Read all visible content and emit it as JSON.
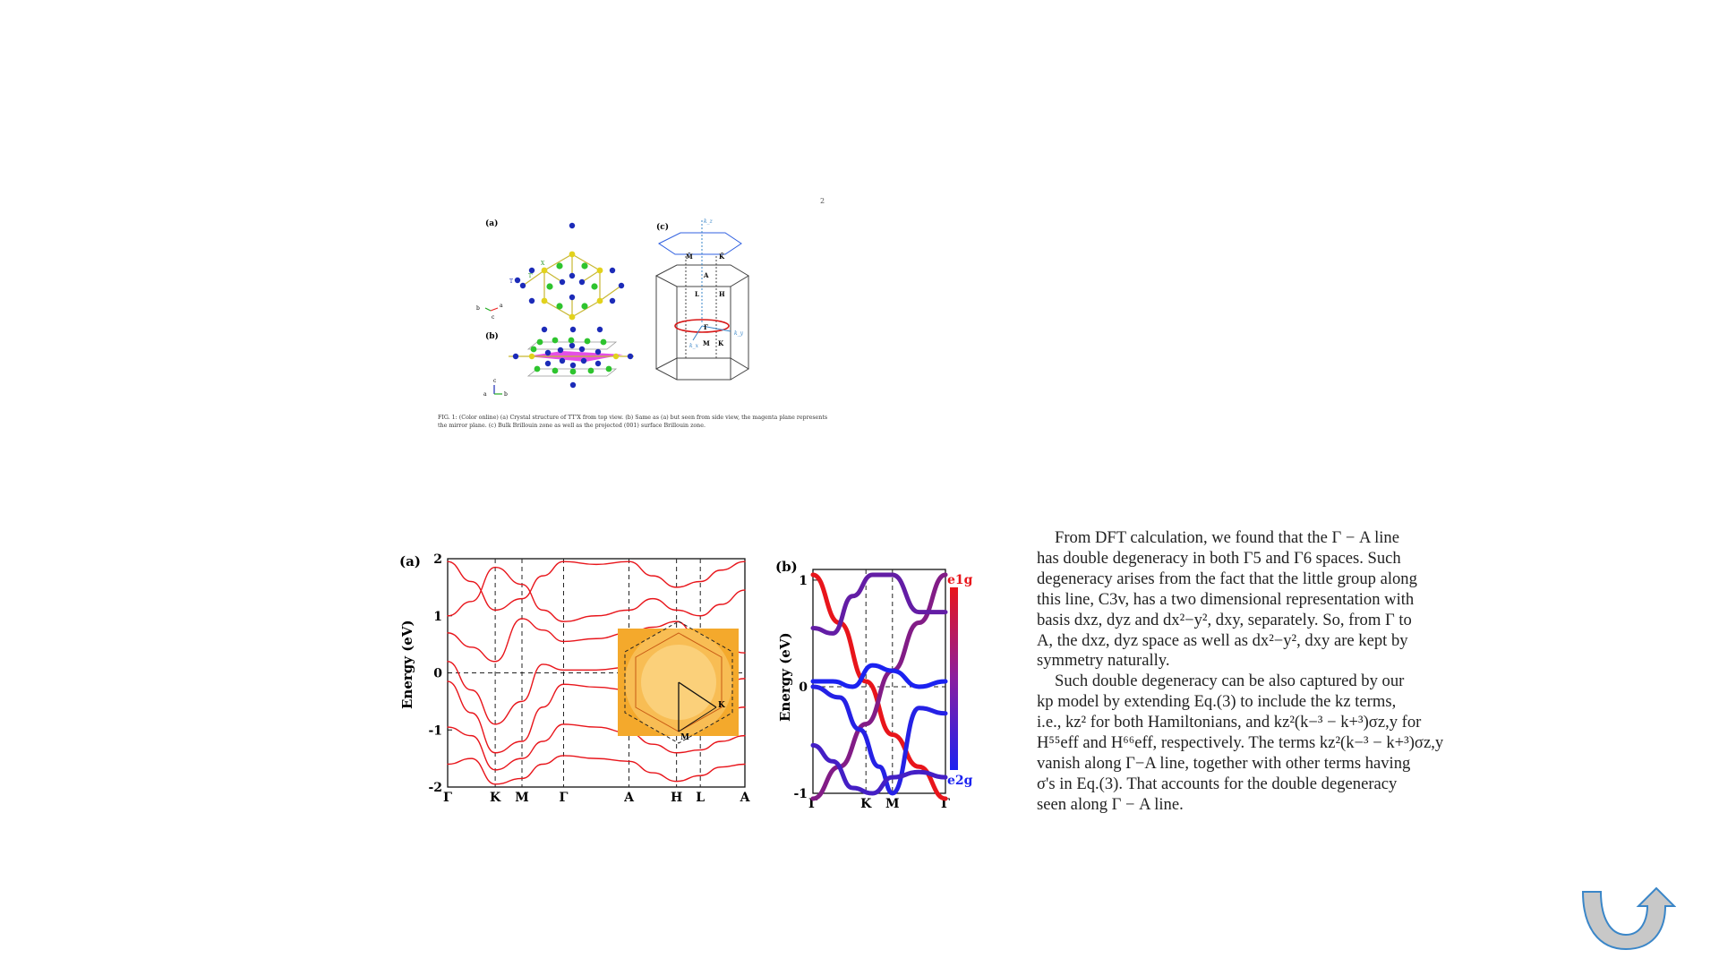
{
  "page": {
    "page_number": "2"
  },
  "figure1": {
    "panel_a": "(a)",
    "panel_b": "(b)",
    "panel_c": "(c)",
    "atom_labels": {
      "T": "T",
      "T_prime": "T'",
      "X": "X"
    },
    "axes_a": {
      "b": "b",
      "a": "a",
      "c": "c"
    },
    "axes_b": {
      "a": "a",
      "b": "b",
      "c": "c"
    },
    "bz_labels": {
      "kz": "k_z",
      "ky": "k_y",
      "kx": "k_x",
      "M_top": "M̄",
      "K_top": "K̄",
      "A": "A",
      "L": "L",
      "H": "H",
      "Gamma": "Γ",
      "M": "M",
      "K": "K"
    },
    "caption": "FIG. 1: (Color online) (a) Crystal structure of TT'X from top view. (b) Same as (a) but seen from side view, the magenta plane represents the mirror plane. (c) Bulk Brillouin zone as well as the projected (001) surface Brillouin zone."
  },
  "figure2": {
    "panel_a": "(a)",
    "panel_b": "(b)",
    "colors": {
      "band_red": "#e8151b",
      "band_blue": "#1b22f0",
      "inset_orange": "#f4a92c"
    },
    "chart_data": [
      {
        "type": "line",
        "title": "",
        "ylabel": "Energy (eV)",
        "ylim": [
          -2,
          2
        ],
        "yticks": [
          "2",
          "1",
          "0",
          "-1",
          "-2"
        ],
        "xticks": [
          "Γ",
          "K",
          "M",
          "Γ",
          "A",
          "H",
          "L",
          "A"
        ],
        "xpos": [
          0,
          0.16,
          0.25,
          0.39,
          0.61,
          0.77,
          0.85,
          1.0
        ],
        "fermi_level": 0,
        "series_color": "#e8151b",
        "series": [
          {
            "values_x": [
              0,
              0.08,
              0.16,
              0.25,
              0.32,
              0.39,
              0.5,
              0.61,
              0.69,
              0.77,
              0.85,
              0.92,
              1.0
            ],
            "values": [
              1.95,
              1.6,
              1.1,
              1.3,
              1.7,
              1.95,
              1.9,
              1.95,
              1.7,
              1.5,
              1.6,
              1.8,
              1.95
            ]
          },
          {
            "values_x": [
              0,
              0.08,
              0.16,
              0.25,
              0.32,
              0.39,
              0.5,
              0.61,
              0.69,
              0.77,
              0.85,
              0.92,
              1.0
            ],
            "values": [
              1.0,
              1.25,
              1.85,
              1.55,
              1.1,
              0.9,
              1.0,
              1.1,
              1.3,
              1.1,
              1.0,
              1.2,
              1.45
            ]
          },
          {
            "values_x": [
              0,
              0.08,
              0.16,
              0.25,
              0.32,
              0.39,
              0.5,
              0.61,
              0.69,
              0.77,
              0.85,
              0.92,
              1.0
            ],
            "values": [
              0.7,
              0.45,
              0.2,
              0.95,
              0.75,
              0.55,
              0.6,
              0.7,
              0.8,
              0.9,
              0.55,
              0.45,
              0.35
            ]
          },
          {
            "values_x": [
              0,
              0.08,
              0.16,
              0.25,
              0.32,
              0.39,
              0.5,
              0.61,
              0.69,
              0.77,
              0.85,
              0.92,
              1.0
            ],
            "values": [
              0.2,
              -0.3,
              -0.9,
              -0.5,
              0.15,
              0.05,
              0.05,
              0.1,
              -0.1,
              -0.4,
              -0.3,
              -0.2,
              -0.1
            ]
          },
          {
            "values_x": [
              0,
              0.08,
              0.16,
              0.25,
              0.32,
              0.39,
              0.5,
              0.61,
              0.69,
              0.77,
              0.85,
              0.92,
              1.0
            ],
            "values": [
              -0.15,
              -0.7,
              -1.4,
              -1.2,
              -0.6,
              -0.2,
              -0.25,
              -0.3,
              -0.6,
              -0.85,
              -0.9,
              -0.7,
              -0.6
            ]
          },
          {
            "values_x": [
              0,
              0.08,
              0.16,
              0.25,
              0.32,
              0.39,
              0.5,
              0.61,
              0.69,
              0.77,
              0.85,
              0.92,
              1.0
            ],
            "values": [
              -0.95,
              -1.1,
              -1.7,
              -1.5,
              -1.2,
              -0.9,
              -0.95,
              -1.05,
              -1.25,
              -1.4,
              -1.35,
              -1.2,
              -1.1
            ]
          },
          {
            "values_x": [
              0,
              0.08,
              0.16,
              0.25,
              0.32,
              0.39,
              0.5,
              0.61,
              0.69,
              0.77,
              0.85,
              0.92,
              1.0
            ],
            "values": [
              -1.6,
              -1.5,
              -1.95,
              -1.85,
              -1.6,
              -1.45,
              -1.5,
              -1.55,
              -1.75,
              -1.9,
              -1.8,
              -1.65,
              -1.6
            ]
          }
        ],
        "inset": {
          "ticks": [
            "K",
            "M"
          ],
          "axes": [
            "k_x",
            "k_y"
          ]
        }
      },
      {
        "type": "line",
        "title": "",
        "ylabel": "Energy (eV)",
        "ylim": [
          -1,
          1.1
        ],
        "yticks": [
          "1",
          "0",
          "-1"
        ],
        "xticks": [
          "Γ",
          "K",
          "M",
          "Γ"
        ],
        "xpos": [
          0,
          0.4,
          0.6,
          1.0
        ],
        "fermi_level": 0,
        "colorbar": {
          "top_label": "e1g",
          "bottom_label": "e2g",
          "top_color": "#e8151b",
          "bottom_color": "#1b22f0"
        },
        "series": [
          {
            "weight": 1.0,
            "values_x": [
              0,
              0.2,
              0.4,
              0.6,
              0.8,
              1.0
            ],
            "values": [
              1.05,
              0.6,
              0.05,
              -0.45,
              -0.75,
              -1.05
            ]
          },
          {
            "weight": 0.5,
            "values_x": [
              0,
              0.2,
              0.4,
              0.6,
              0.8,
              1.0
            ],
            "values": [
              -1.05,
              -0.75,
              -0.35,
              0.15,
              0.6,
              1.05
            ]
          },
          {
            "weight": 0.35,
            "values_x": [
              0,
              0.15,
              0.3,
              0.45,
              0.6,
              0.8,
              1.0
            ],
            "values": [
              0.55,
              0.5,
              0.85,
              1.05,
              1.05,
              0.7,
              0.7
            ]
          },
          {
            "weight": 0.0,
            "values_x": [
              0,
              0.15,
              0.3,
              0.45,
              0.6,
              0.8,
              1.0
            ],
            "values": [
              0.05,
              0.05,
              0.0,
              0.2,
              0.15,
              0.0,
              0.05
            ]
          },
          {
            "weight": 0.05,
            "values_x": [
              0,
              0.2,
              0.35,
              0.5,
              0.6,
              0.8,
              1.0
            ],
            "values": [
              0.0,
              -0.1,
              -0.4,
              -0.75,
              -1.0,
              -0.2,
              -0.25
            ]
          },
          {
            "weight": 0.2,
            "values_x": [
              0,
              0.15,
              0.3,
              0.45,
              0.6,
              0.8,
              1.0
            ],
            "values": [
              -0.55,
              -0.7,
              -0.95,
              -1.0,
              -0.85,
              -0.8,
              -0.85
            ]
          }
        ]
      }
    ]
  },
  "body_text": {
    "p1_l1": "From DFT calculation, we found that the Γ − A line",
    "p1_l2": "has double degeneracy in both Γ5 and Γ6 spaces. Such",
    "p1_l3": "degeneracy arises from the fact that the little group along",
    "p1_l4": "this line, C3v, has a two dimensional representation with",
    "p1_l5": "basis dxz, dyz and dx²−y², dxy, separately. So, from Γ to",
    "p1_l6": "A, the dxz, dyz space as well as dx²−y², dxy are kept by",
    "p1_l7": "symmetry naturally.",
    "p2_l1": "Such double degeneracy can be also captured by our",
    "p2_l2": "kp model by extending Eq.(3) to include the kz terms,",
    "p2_l3": "i.e., kz² for both Hamiltonians, and kz²(k−³ − k+³)σz,y for",
    "p2_l4": "H⁵⁵eff and H⁶⁶eff, respectively. The terms kz²(k−³ − k+³)σz,y",
    "p2_l5": "vanish along Γ−A line, together with other terms having",
    "p2_l6": "σ's in Eq.(3). That accounts for the double degeneracy",
    "p2_l7": "seen along Γ − A line."
  },
  "colors": {
    "curl_fill": "#c8c8c8",
    "curl_stroke": "#3a86c8"
  }
}
